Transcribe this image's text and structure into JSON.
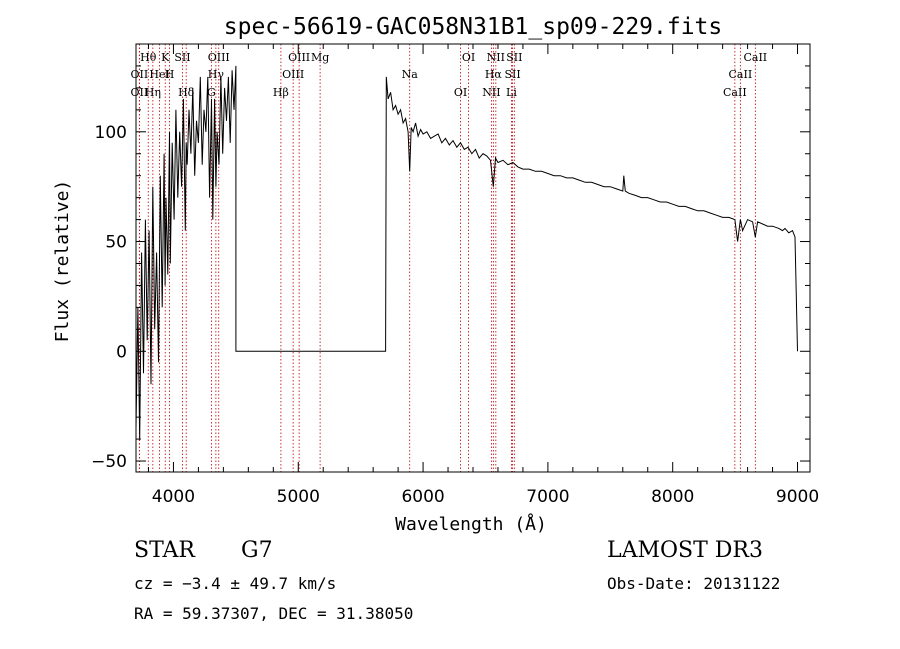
{
  "chart_data": {
    "type": "line",
    "title": "spec-56619-GAC058N31B1_sp09-229.fits",
    "xlabel": "Wavelength (Å)",
    "ylabel": "Flux (relative)",
    "xlim": [
      3700,
      9100
    ],
    "ylim": [
      -55,
      140
    ],
    "x_ticks": [
      4000,
      5000,
      6000,
      7000,
      8000,
      9000
    ],
    "x_tick_labels": [
      "4000",
      "5000",
      "6000",
      "7000",
      "8000",
      "9000"
    ],
    "y_ticks": [
      -50,
      0,
      50,
      100
    ],
    "y_tick_labels": [
      "−50",
      "0",
      "50",
      "100"
    ],
    "series": [
      {
        "name": "flux",
        "x": [
          3700,
          3715,
          3730,
          3745,
          3760,
          3775,
          3790,
          3805,
          3820,
          3835,
          3850,
          3865,
          3880,
          3895,
          3910,
          3925,
          3933,
          3940,
          3955,
          3968,
          3975,
          3990,
          4005,
          4020,
          4035,
          4050,
          4065,
          4080,
          4095,
          4102,
          4110,
          4125,
          4140,
          4155,
          4170,
          4185,
          4200,
          4215,
          4230,
          4245,
          4260,
          4275,
          4290,
          4305,
          4315,
          4330,
          4340,
          4350,
          4365,
          4380,
          4395,
          4410,
          4425,
          4440,
          4455,
          4470,
          4485,
          4500,
          4500,
          5700,
          5705,
          5720,
          5740,
          5760,
          5780,
          5800,
          5820,
          5840,
          5860,
          5880,
          5893,
          5905,
          5920,
          5940,
          5960,
          5980,
          6000,
          6030,
          6060,
          6090,
          6120,
          6150,
          6180,
          6210,
          6240,
          6270,
          6300,
          6330,
          6360,
          6390,
          6420,
          6450,
          6480,
          6510,
          6540,
          6563,
          6580,
          6600,
          6640,
          6680,
          6720,
          6760,
          6800,
          6850,
          6900,
          6950,
          7000,
          7050,
          7100,
          7150,
          7200,
          7250,
          7300,
          7350,
          7400,
          7450,
          7500,
          7550,
          7600,
          7608,
          7620,
          7650,
          7700,
          7750,
          7800,
          7850,
          7900,
          7950,
          8000,
          8050,
          8100,
          8150,
          8200,
          8250,
          8300,
          8350,
          8400,
          8450,
          8498,
          8520,
          8542,
          8560,
          8600,
          8640,
          8662,
          8680,
          8720,
          8760,
          8800,
          8850,
          8880,
          8900,
          8930,
          8960,
          8980,
          9000
        ],
        "y": [
          -35,
          20,
          -40,
          45,
          -10,
          60,
          5,
          55,
          -15,
          75,
          10,
          45,
          -5,
          80,
          20,
          90,
          30,
          70,
          35,
          100,
          40,
          95,
          60,
          110,
          70,
          100,
          75,
          115,
          55,
          95,
          85,
          110,
          90,
          120,
          80,
          105,
          95,
          125,
          85,
          110,
          100,
          125,
          70,
          115,
          60,
          115,
          75,
          100,
          85,
          125,
          90,
          120,
          105,
          125,
          95,
          128,
          110,
          130,
          0,
          0,
          125,
          115,
          118,
          110,
          112,
          108,
          110,
          104,
          106,
          100,
          82,
          102,
          100,
          104,
          98,
          101,
          99,
          100,
          97,
          98,
          99,
          95,
          97,
          94,
          96,
          93,
          95,
          92,
          93,
          90,
          92,
          88,
          90,
          89,
          87,
          75,
          88,
          86,
          87,
          85,
          86,
          84,
          83,
          83,
          82,
          82,
          81,
          80,
          80,
          79,
          79,
          78,
          77,
          77,
          76,
          75,
          75,
          74,
          73,
          80,
          73,
          72,
          71,
          70,
          70,
          69,
          68,
          68,
          67,
          66,
          66,
          65,
          64,
          64,
          63,
          62,
          61,
          61,
          60,
          50,
          60,
          55,
          60,
          59,
          52,
          59,
          58,
          57,
          57,
          56,
          55,
          56,
          54,
          55,
          52,
          0
        ]
      }
    ],
    "lines": [
      {
        "name": "Hθ",
        "x": 3798
      },
      {
        "name": "OII",
        "x": 3727
      },
      {
        "name": "OII",
        "x": 3727
      },
      {
        "name": "K",
        "x": 3934
      },
      {
        "name": "HeI",
        "x": 3889
      },
      {
        "name": "Hη",
        "x": 3835
      },
      {
        "name": "SII",
        "x": 4072
      },
      {
        "name": "H",
        "x": 3969
      },
      {
        "name": "Hδ",
        "x": 4102
      },
      {
        "name": "OIII",
        "x": 4363
      },
      {
        "name": "Hγ",
        "x": 4340
      },
      {
        "name": "G",
        "x": 4304
      },
      {
        "name": "OIII",
        "x": 5007
      },
      {
        "name": "OIII",
        "x": 4959
      },
      {
        "name": "Hβ",
        "x": 4861
      },
      {
        "name": "Mg",
        "x": 5175
      },
      {
        "name": "Na",
        "x": 5893
      },
      {
        "name": "OI",
        "x": 6300
      },
      {
        "name": "OI",
        "x": 6364
      },
      {
        "name": "Hα",
        "x": 6563
      },
      {
        "name": "NII",
        "x": 6548
      },
      {
        "name": "NII",
        "x": 6583
      },
      {
        "name": "SII",
        "x": 6717
      },
      {
        "name": "Li",
        "x": 6708
      },
      {
        "name": "SII",
        "x": 6731
      },
      {
        "name": "CaII",
        "x": 8542
      },
      {
        "name": "CaII",
        "x": 8498
      },
      {
        "name": "CaII",
        "x": 8662
      }
    ]
  },
  "info": {
    "object_type": "STAR",
    "object_class": "G7",
    "survey": "LAMOST DR3",
    "cz": "cz = −3.4 ± 49.7 km/s",
    "obs_date": "Obs-Date: 20131122",
    "radec": "RA =  59.37307, DEC =  31.38050"
  }
}
